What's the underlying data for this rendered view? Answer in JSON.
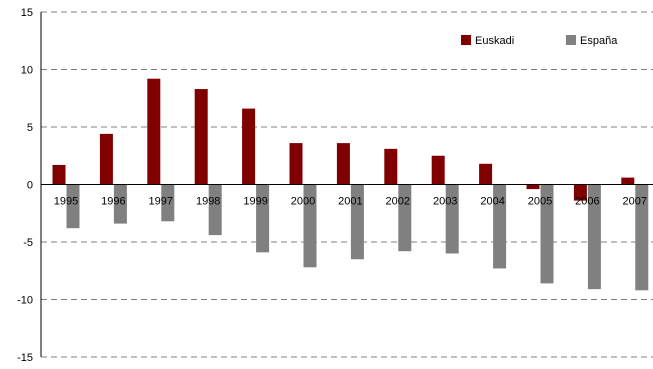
{
  "chart_data": {
    "type": "bar",
    "title": "",
    "xlabel": "",
    "ylabel": "",
    "categories": [
      "1995",
      "1996",
      "1997",
      "1998",
      "1999",
      "2000",
      "2001",
      "2002",
      "2003",
      "2004",
      "2005",
      "2006",
      "2007"
    ],
    "series": [
      {
        "name": "Euskadi",
        "color": "#800000",
        "values": [
          1.7,
          4.4,
          9.2,
          8.3,
          6.6,
          3.6,
          3.6,
          3.1,
          2.5,
          1.8,
          -0.4,
          -1.4,
          0.6
        ]
      },
      {
        "name": "España",
        "color": "#808080",
        "values": [
          -3.8,
          -3.4,
          -3.2,
          -4.4,
          -5.9,
          -7.2,
          -6.5,
          -5.8,
          -6.0,
          -7.3,
          -8.6,
          -9.1,
          -9.2
        ]
      }
    ],
    "ylim": [
      -15,
      15
    ],
    "yticks": [
      -15,
      -10,
      -5,
      0,
      5,
      10,
      15
    ],
    "grid": true,
    "legend_position": "top-right"
  }
}
